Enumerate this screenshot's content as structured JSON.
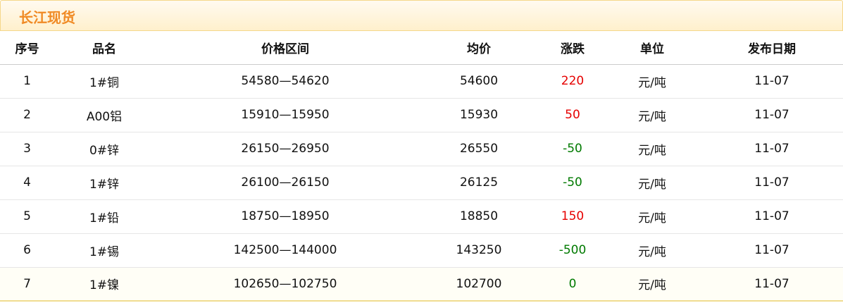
{
  "title": "长江现货",
  "columns": [
    "序号",
    "品名",
    "价格区间",
    "均价",
    "涨跌",
    "单位",
    "发布日期"
  ],
  "rows": [
    {
      "no": "1",
      "name": "1#铜",
      "range": "54580—54620",
      "avg": "54600",
      "change": "220",
      "dir": "up",
      "unit": "元/吨",
      "date": "11-07"
    },
    {
      "no": "2",
      "name": "A00铝",
      "range": "15910—15950",
      "avg": "15930",
      "change": "50",
      "dir": "up",
      "unit": "元/吨",
      "date": "11-07"
    },
    {
      "no": "3",
      "name": "0#锌",
      "range": "26150—26950",
      "avg": "26550",
      "change": "-50",
      "dir": "down",
      "unit": "元/吨",
      "date": "11-07"
    },
    {
      "no": "4",
      "name": "1#锌",
      "range": "26100—26150",
      "avg": "26125",
      "change": "-50",
      "dir": "down",
      "unit": "元/吨",
      "date": "11-07"
    },
    {
      "no": "5",
      "name": "1#铅",
      "range": "18750—18950",
      "avg": "18850",
      "change": "150",
      "dir": "up",
      "unit": "元/吨",
      "date": "11-07"
    },
    {
      "no": "6",
      "name": "1#锡",
      "range": "142500—144000",
      "avg": "143250",
      "change": "-500",
      "dir": "down",
      "unit": "元/吨",
      "date": "11-07"
    },
    {
      "no": "7",
      "name": "1#镍",
      "range": "102650—102750",
      "avg": "102700",
      "change": "0",
      "dir": "flat",
      "unit": "元/吨",
      "date": "11-07"
    }
  ],
  "colors": {
    "title": "#f08a24",
    "up": "#e60000",
    "down": "#007a00"
  }
}
